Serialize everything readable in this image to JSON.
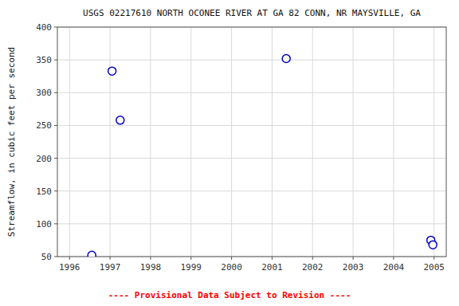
{
  "chart_data": {
    "type": "scatter",
    "title": "USGS 02217610 NORTH OCONEE RIVER AT GA 82 CONN, NR MAYSVILLE, GA",
    "y_label": "Streamflow, in cubic feet per second",
    "x": [
      1996.55,
      1997.05,
      1997.25,
      2001.35,
      2004.92,
      2004.97
    ],
    "values": [
      52,
      333,
      258,
      352,
      75,
      68
    ],
    "xlim": [
      1995.7,
      2005.3
    ],
    "ylim": [
      50,
      400
    ],
    "xticks": [
      1996,
      1997,
      1998,
      1999,
      2000,
      2001,
      2002,
      2003,
      2004,
      2005
    ],
    "yticks": [
      50,
      100,
      150,
      200,
      250,
      300,
      350,
      400
    ],
    "color": "#0000CC",
    "marker": "open-circle",
    "grid": true,
    "annotations": [
      {
        "text": "---- Provisional Data Subject to Revision ----",
        "color": "#FF0000"
      }
    ]
  }
}
